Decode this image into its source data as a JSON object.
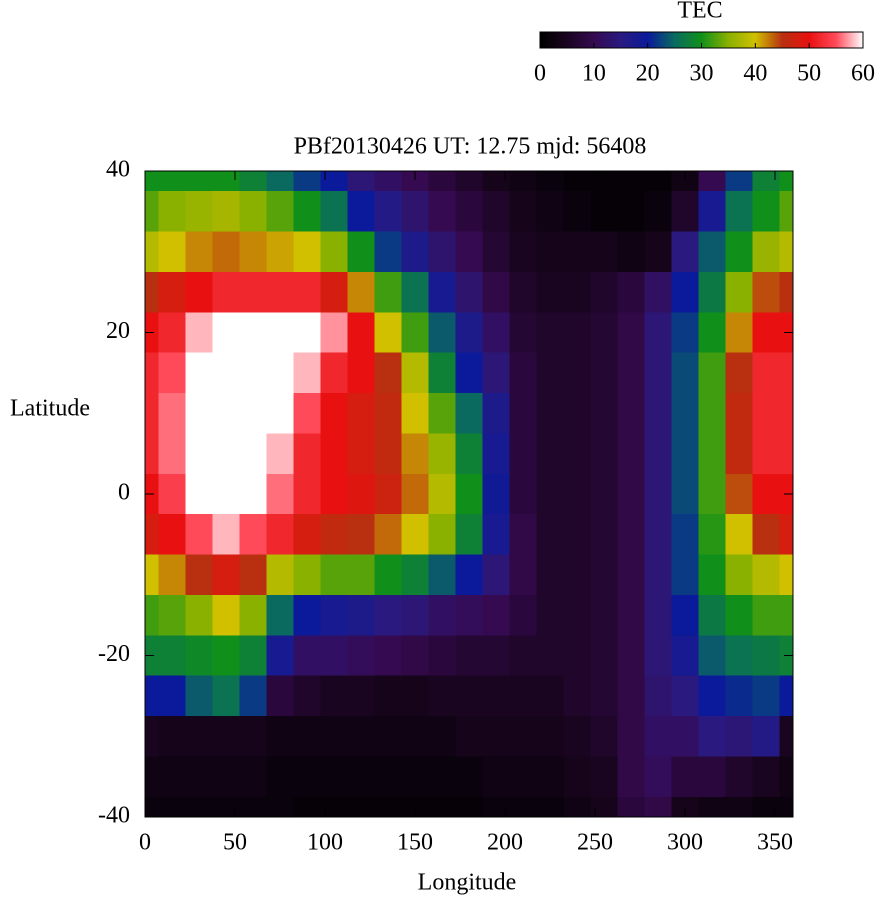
{
  "chart_data": {
    "type": "heatmap",
    "title": "PBf20130426  UT: 12.75  mjd: 56408",
    "x_label": "Longitude",
    "y_label": "Latitude",
    "colorbar_label": "TEC",
    "xlim": [
      0,
      360
    ],
    "ylim": [
      -40,
      40
    ],
    "xticks": [
      0,
      50,
      100,
      150,
      200,
      250,
      300,
      350
    ],
    "yticks": [
      -40,
      -20,
      0,
      20,
      40
    ],
    "clim": [
      0,
      60
    ],
    "cticks": [
      0,
      10,
      20,
      30,
      40,
      50,
      60
    ],
    "colormap": [
      "#000000",
      "#1a0520",
      "#350a50",
      "#2a1a80",
      "#0a1a9a",
      "#0a6a60",
      "#10901a",
      "#8ab000",
      "#d0c000",
      "#b83010",
      "#e81010",
      "#ff4a5a",
      "#ffffff"
    ],
    "x": [
      0,
      15,
      30,
      45,
      60,
      75,
      90,
      105,
      120,
      135,
      150,
      165,
      180,
      195,
      210,
      225,
      240,
      255,
      270,
      285,
      300,
      315,
      330,
      345,
      360
    ],
    "y": [
      40,
      35,
      30,
      25,
      20,
      15,
      10,
      5,
      0,
      -5,
      -10,
      -15,
      -20,
      -25,
      -30,
      -35,
      -40
    ],
    "z": [
      [
        30,
        30,
        30,
        30,
        28,
        25,
        22,
        20,
        14,
        12,
        10,
        8,
        6,
        4,
        3,
        2,
        1,
        1,
        1,
        1,
        3,
        10,
        22,
        28,
        30
      ],
      [
        33,
        35,
        36,
        37,
        35,
        33,
        30,
        26,
        20,
        16,
        13,
        10,
        8,
        6,
        4,
        3,
        2,
        1,
        1,
        2,
        6,
        18,
        26,
        30,
        33
      ],
      [
        38,
        40,
        42,
        43,
        42,
        41,
        40,
        35,
        30,
        22,
        17,
        13,
        10,
        7,
        5,
        4,
        4,
        4,
        3,
        4,
        15,
        24,
        30,
        36,
        38
      ],
      [
        45,
        48,
        50,
        52,
        52,
        52,
        52,
        48,
        42,
        32,
        26,
        18,
        13,
        9,
        6,
        5,
        5,
        6,
        8,
        12,
        20,
        27,
        35,
        44,
        45
      ],
      [
        50,
        52,
        58,
        60,
        60,
        60,
        60,
        57,
        50,
        40,
        32,
        24,
        17,
        12,
        7,
        6,
        6,
        7,
        9,
        14,
        22,
        30,
        42,
        50,
        50
      ],
      [
        52,
        55,
        60,
        60,
        60,
        60,
        58,
        52,
        50,
        45,
        38,
        28,
        20,
        14,
        8,
        6,
        6,
        7,
        9,
        14,
        23,
        32,
        45,
        52,
        52
      ],
      [
        52,
        56,
        60,
        60,
        60,
        60,
        55,
        50,
        48,
        46,
        40,
        33,
        25,
        17,
        8,
        6,
        6,
        7,
        9,
        14,
        23,
        32,
        46,
        52,
        52
      ],
      [
        52,
        56,
        60,
        60,
        60,
        58,
        52,
        50,
        48,
        46,
        42,
        36,
        28,
        18,
        8,
        6,
        6,
        7,
        9,
        14,
        23,
        32,
        46,
        52,
        52
      ],
      [
        50,
        54,
        60,
        60,
        60,
        56,
        52,
        50,
        49,
        47,
        43,
        38,
        30,
        19,
        8,
        6,
        6,
        7,
        9,
        14,
        23,
        32,
        44,
        50,
        50
      ],
      [
        48,
        50,
        55,
        58,
        55,
        52,
        48,
        46,
        45,
        43,
        40,
        35,
        28,
        18,
        9,
        6,
        6,
        7,
        9,
        14,
        22,
        31,
        40,
        45,
        48
      ],
      [
        40,
        42,
        45,
        48,
        45,
        38,
        35,
        33,
        33,
        30,
        28,
        24,
        20,
        14,
        9,
        6,
        6,
        7,
        9,
        14,
        22,
        30,
        35,
        38,
        40
      ],
      [
        32,
        33,
        35,
        40,
        35,
        25,
        20,
        18,
        17,
        15,
        14,
        12,
        11,
        10,
        8,
        6,
        6,
        7,
        9,
        14,
        20,
        27,
        30,
        32,
        32
      ],
      [
        28,
        28,
        29,
        30,
        28,
        18,
        12,
        12,
        11,
        10,
        9,
        8,
        7,
        7,
        6,
        6,
        6,
        7,
        9,
        14,
        18,
        24,
        26,
        27,
        28
      ],
      [
        20,
        20,
        24,
        26,
        22,
        8,
        6,
        5,
        5,
        4,
        4,
        5,
        5,
        5,
        5,
        5,
        6,
        7,
        9,
        13,
        15,
        20,
        21,
        22,
        20
      ],
      [
        5,
        4,
        4,
        4,
        4,
        3,
        3,
        3,
        3,
        3,
        3,
        3,
        4,
        4,
        4,
        4,
        5,
        6,
        9,
        12,
        12,
        15,
        14,
        16,
        5
      ],
      [
        3,
        3,
        3,
        3,
        3,
        2,
        2,
        2,
        2,
        2,
        2,
        2,
        2,
        3,
        3,
        3,
        4,
        5,
        9,
        11,
        8,
        8,
        6,
        5,
        3
      ],
      [
        2,
        2,
        2,
        2,
        2,
        2,
        1,
        1,
        1,
        1,
        1,
        1,
        1,
        2,
        2,
        2,
        3,
        4,
        8,
        9,
        4,
        3,
        3,
        2,
        2
      ]
    ]
  }
}
